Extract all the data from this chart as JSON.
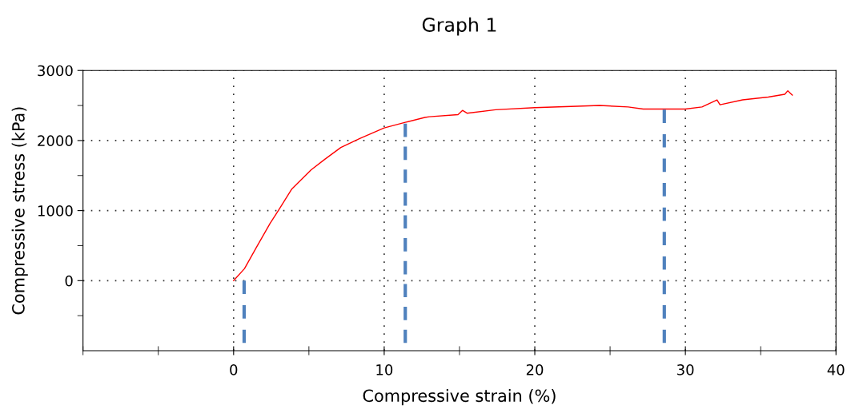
{
  "chart_data": {
    "type": "line",
    "title": "Graph 1",
    "xlabel": "Compressive strain (%)",
    "ylabel": "Compressive stress (kPa)",
    "xlim": [
      -10,
      40
    ],
    "ylim": [
      -1000,
      3000
    ],
    "xticks": [
      {
        "value": -10,
        "label": null
      },
      {
        "value": -5,
        "label": null
      },
      0,
      {
        "value": 5,
        "label": null
      },
      10,
      {
        "value": 15,
        "label": null
      },
      20,
      {
        "value": 25,
        "label": null
      },
      30,
      {
        "value": 35,
        "label": null
      },
      40
    ],
    "yticks": [
      {
        "value": -500,
        "label": null
      },
      0,
      {
        "value": 500,
        "label": null
      },
      1000,
      {
        "value": 1500,
        "label": null
      },
      2000,
      {
        "value": 2500,
        "label": null
      },
      3000
    ],
    "grid": true,
    "line_style": "solid",
    "marker": "none",
    "series": [
      {
        "color": "#ff0000",
        "x": [
          0,
          0.72,
          1.53,
          2.43,
          2.97,
          3.87,
          5.14,
          6.04,
          7.12,
          8.38,
          10,
          11.4,
          12.7,
          13.0,
          14.9,
          15.2,
          15.5,
          17.4,
          20,
          22.8,
          24.3,
          26.2,
          27.2,
          30,
          31.1,
          32.1,
          32.3,
          33.8,
          35.5,
          36.6,
          36.8,
          37.1
        ],
        "values": [
          0,
          170,
          480,
          820,
          1000,
          1310,
          1580,
          1730,
          1900,
          2030,
          2180,
          2260,
          2330,
          2340,
          2370,
          2430,
          2390,
          2440,
          2470,
          2490,
          2500,
          2480,
          2450,
          2450,
          2480,
          2580,
          2510,
          2580,
          2620,
          2660,
          2710,
          2650
        ]
      },
      {
        "color": "#4f81bd",
        "line_style": "dashed",
        "x": [
          0.7,
          0.7
        ],
        "values": [
          0,
          -890
        ]
      },
      {
        "color": "#4f81bd",
        "line_style": "dashed",
        "x": [
          11.4,
          11.4
        ],
        "values": [
          2240,
          -890
        ]
      },
      {
        "color": "#4f81bd",
        "line_style": "dashed",
        "x": [
          28.6,
          28.6
        ],
        "values": [
          2440,
          -890
        ]
      }
    ]
  }
}
